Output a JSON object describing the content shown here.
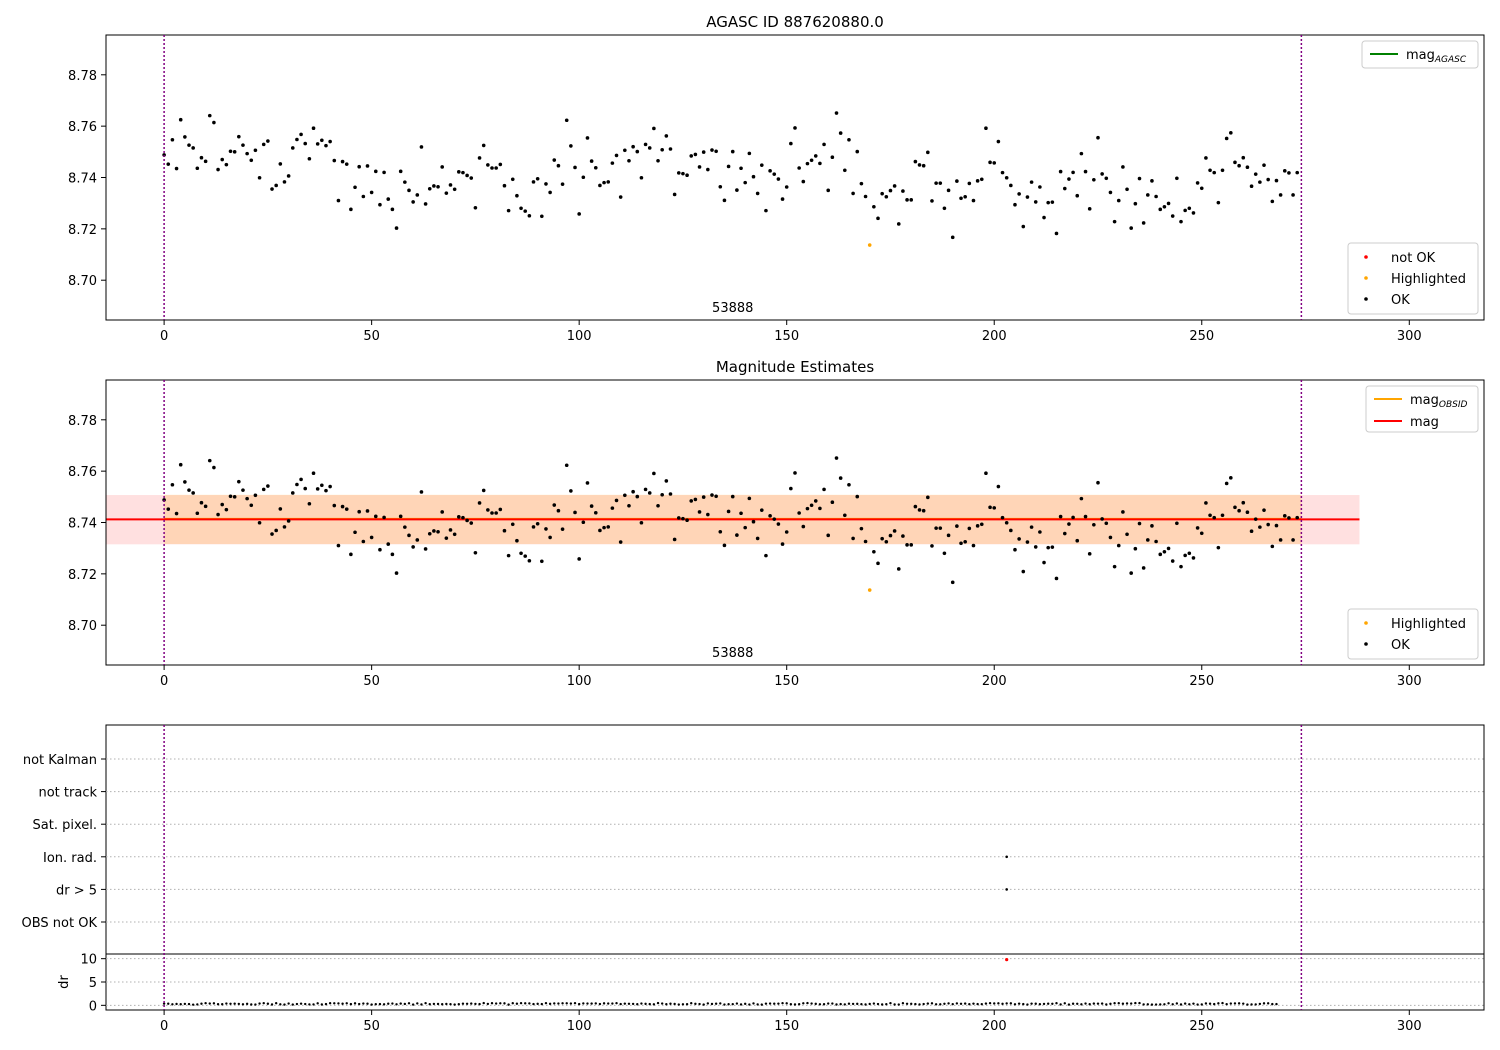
{
  "chart_data": [
    {
      "type": "scatter",
      "title": "AGASC ID 887620880.0",
      "xlim": [
        -14,
        318
      ],
      "ylim": [
        8.6845,
        8.7955
      ],
      "xticks": [
        0,
        50,
        100,
        150,
        200,
        250,
        300
      ],
      "yticks": [
        8.7,
        8.72,
        8.74,
        8.76,
        8.78
      ],
      "obsid_label": "53888",
      "obsid_label_x": 137,
      "vlines": [
        0,
        274
      ],
      "legend_lines": [
        {
          "label": "mag",
          "sub": "AGASC",
          "color": "#008000"
        }
      ],
      "legend_points": [
        {
          "label": "not OK",
          "color": "#ff0000"
        },
        {
          "label": "Highlighted",
          "color": "#ffa500"
        },
        {
          "label": "OK",
          "color": "#000000"
        }
      ],
      "highlighted": [
        {
          "x": 170,
          "y": 8.7137
        }
      ]
    },
    {
      "type": "scatter",
      "title": "Magnitude Estimates",
      "xlim": [
        -14,
        318
      ],
      "ylim": [
        8.6845,
        8.7955
      ],
      "xticks": [
        0,
        50,
        100,
        150,
        200,
        250,
        300
      ],
      "yticks": [
        8.7,
        8.72,
        8.74,
        8.76,
        8.78
      ],
      "obsid_label": "53888",
      "obsid_label_x": 137,
      "vlines": [
        0,
        274
      ],
      "mag": 8.7412,
      "mag_band": [
        8.7315,
        8.7507
      ],
      "mag_line_x": [
        -14,
        288
      ],
      "mag_obsid": 8.7414,
      "mag_obsid_band": [
        8.7316,
        8.7508
      ],
      "mag_obsid_line_x": [
        0,
        274
      ],
      "legend_lines": [
        {
          "label": "mag",
          "sub": "OBSID",
          "color": "#ffa500"
        },
        {
          "label": "mag",
          "sub": "",
          "color": "#ff0000"
        }
      ],
      "legend_points": [
        {
          "label": "Highlighted",
          "color": "#ffa500"
        },
        {
          "label": "OK",
          "color": "#000000"
        }
      ],
      "highlighted": [
        {
          "x": 170,
          "y": 8.7137
        }
      ]
    },
    {
      "type": "scatter",
      "title": "",
      "xlim": [
        -14,
        318
      ],
      "xticks": [
        0,
        50,
        100,
        150,
        200,
        250,
        300
      ],
      "vlines": [
        0,
        274
      ],
      "flag_labels": [
        "not Kalman",
        "not track",
        "Sat. pixel.",
        "Ion. rad.",
        "dr > 5",
        "OBS not OK"
      ],
      "flag_points": [
        {
          "flag": "Ion. rad.",
          "x": 203
        },
        {
          "flag": "dr > 5",
          "x": 203
        }
      ],
      "ylabel": "dr",
      "dr_ylim": [
        -1,
        11
      ],
      "dr_yticks": [
        0,
        5,
        10
      ],
      "dr_outlier": {
        "x": 203,
        "y": 9.8
      }
    }
  ],
  "magnitudes": [
    8.7488,
    8.7452,
    8.7547,
    8.7435,
    8.7625,
    8.7558,
    8.7526,
    8.7515,
    8.7436,
    8.7477,
    8.7463,
    8.7641,
    8.7614,
    8.7431,
    8.747,
    8.745,
    8.7502,
    8.75,
    8.7559,
    8.7526,
    8.7493,
    8.7467,
    8.7506,
    8.7399,
    8.7529,
    8.7542,
    8.7355,
    8.7369,
    8.7453,
    8.7383,
    8.7406,
    8.7515,
    8.7548,
    8.7568,
    8.7532,
    8.7473,
    8.7592,
    8.7531,
    8.7545,
    8.7524,
    8.754,
    8.7466,
    8.731,
    8.7462,
    8.7452,
    8.7276,
    8.7362,
    8.7442,
    8.7326,
    8.7445,
    8.7342,
    8.7424,
    8.7294,
    8.742,
    8.7316,
    8.7276,
    8.7203,
    8.7424,
    8.7382,
    8.735,
    8.7305,
    8.7332,
    8.7519,
    8.7297,
    8.7356,
    8.7367,
    8.7364,
    8.7441,
    8.7339,
    8.7371,
    8.7354,
    8.7422,
    8.7419,
    8.7408,
    8.7398,
    8.7282,
    8.7476,
    8.7525,
    8.7449,
    8.7437,
    8.7437,
    8.7451,
    8.7368,
    8.7271,
    8.7393,
    8.7329,
    8.728,
    8.7269,
    8.7251,
    8.7383,
    8.7395,
    8.7249,
    8.7375,
    8.7342,
    8.7468,
    8.7446,
    8.7374,
    8.7623,
    8.7523,
    8.7439,
    8.7258,
    8.7401,
    8.7554,
    8.7464,
    8.7438,
    8.7369,
    8.738,
    8.7383,
    8.7456,
    8.7486,
    8.7324,
    8.7506,
    8.7465,
    8.752,
    8.7501,
    8.7399,
    8.7529,
    8.7515,
    8.7591,
    8.7465,
    8.7508,
    8.7562,
    8.7511,
    8.7334,
    8.7418,
    8.7415,
    8.7409,
    8.7484,
    8.749,
    8.7441,
    8.7499,
    8.7431,
    8.7507,
    8.7502,
    8.7364,
    8.7311,
    8.7443,
    8.7501,
    8.7351,
    8.7436,
    8.738,
    8.7494,
    8.7403,
    8.7338,
    8.7448,
    8.7271,
    8.7426,
    8.7413,
    8.7394,
    8.7316,
    8.7363,
    8.7532,
    8.7593,
    8.7437,
    8.7384,
    8.7454,
    8.7467,
    8.7484,
    8.7455,
    8.7529,
    8.735,
    8.7479,
    8.7651,
    8.7573,
    8.7428,
    8.7547,
    8.7338,
    8.7501,
    8.7376,
    8.7326,
    8.7137,
    8.7286,
    8.7241,
    8.7337,
    8.7325,
    8.7349,
    8.7367,
    8.7219,
    8.7347,
    8.7313,
    8.7313,
    8.7462,
    8.7449,
    8.7446,
    8.7498,
    8.7309,
    8.7378,
    8.7378,
    8.728,
    8.735,
    8.7167,
    8.7386,
    8.7319,
    8.7325,
    8.7377,
    8.731,
    8.7387,
    8.7393,
    8.7592,
    8.7459,
    8.7457,
    8.754,
    8.7419,
    8.7399,
    8.7369,
    8.7294,
    8.7336,
    8.7209,
    8.7324,
    8.7382,
    8.7305,
    8.7363,
    8.7244,
    8.7302,
    8.7304,
    8.7182,
    8.7423,
    8.7357,
    8.7394,
    8.742,
    8.7329,
    8.7493,
    8.7423,
    8.7278,
    8.7391,
    8.7555,
    8.7414,
    8.7397,
    8.7342,
    8.7228,
    8.731,
    8.7441,
    8.7354,
    8.7203,
    8.7298,
    8.7396,
    8.7223,
    8.7332,
    8.7387,
    8.7326,
    8.7276,
    8.7286,
    8.7299,
    8.725,
    8.7397,
    8.7228,
    8.7272,
    8.728,
    8.7262,
    8.7379,
    8.7358,
    8.7476,
    8.7428,
    8.7419,
    8.7302,
    8.7428,
    8.7552,
    8.7574,
    8.7459,
    8.7446,
    8.7477,
    8.744,
    8.7366,
    8.7413,
    8.7382,
    8.7448,
    8.7392,
    8.7307,
    8.7388,
    8.7332,
    8.7426,
    8.7418,
    8.7332,
    8.7419
  ],
  "dr_values": [
    0.36,
    0.35,
    0.22,
    0.29,
    0.23,
    0.3,
    0.27,
    0.14,
    0.2,
    0.35,
    0.47,
    0.38,
    0.43,
    0.24,
    0.23,
    0.38,
    0.33,
    0.35,
    0.3,
    0.22,
    0.31,
    0.18,
    0.17,
    0.39,
    0.46,
    0.34,
    0.18,
    0.45,
    0.21,
    0.16,
    0.38,
    0.16,
    0.28,
    0.36,
    0.28,
    0.2,
    0.2,
    0.43,
    0.18,
    0.26,
    0.45,
    0.44,
    0.41,
    0.34,
    0.44,
    0.26,
    0.42,
    0.28,
    0.39,
    0.35,
    0.16,
    0.24,
    0.26,
    0.21,
    0.35,
    0.39,
    0.22,
    0.37,
    0.29,
    0.44,
    0.16,
    0.41,
    0.19,
    0.47,
    0.24,
    0.3,
    0.29,
    0.23,
    0.29,
    0.25,
    0.16,
    0.24,
    0.35,
    0.33,
    0.37,
    0.3,
    0.26,
    0.48,
    0.3,
    0.45,
    0.39,
    0.44,
    0.42,
    0.15,
    0.45,
    0.35,
    0.46,
    0.43,
    0.41,
    0.27,
    0.32,
    0.27,
    0.46,
    0.32,
    0.41,
    0.38,
    0.44,
    0.44,
    0.39,
    0.46,
    0.26,
    0.41,
    0.39,
    0.37,
    0.41,
    0.28,
    0.42,
    0.38,
    0.38,
    0.47,
    0.27,
    0.36,
    0.33,
    0.3,
    0.23,
    0.39,
    0.31,
    0.26,
    0.21,
    0.48,
    0.38,
    0.23,
    0.34,
    0.29,
    0.17,
    0.22,
    0.24,
    0.45,
    0.32,
    0.28,
    0.16,
    0.41,
    0.29,
    0.35,
    0.41,
    0.17,
    0.23,
    0.25,
    0.39,
    0.19,
    0.32,
    0.17,
    0.41,
    0.2,
    0.15,
    0.36,
    0.38,
    0.35,
    0.36,
    0.46,
    0.43,
    0.23,
    0.18,
    0.24,
    0.44,
    0.48,
    0.38,
    0.31,
    0.22,
    0.23,
    0.38,
    0.38,
    0.18,
    0.26,
    0.2,
    0.35,
    0.3,
    0.31,
    0.24,
    0.18,
    0.29,
    0.38,
    0.28,
    0.18,
    0.24,
    0.47,
    0.18,
    0.17,
    0.45,
    0.33,
    0.32,
    0.27,
    0.19,
    0.28,
    0.37,
    0.43,
    0.22,
    0.21,
    0.33,
    0.41,
    0.25,
    0.41,
    0.33,
    0.37,
    0.24,
    0.36,
    0.27,
    0.25,
    0.37,
    0.47,
    0.4,
    0.43,
    0.32,
    0.41,
    0.42,
    0.22,
    0.36,
    0.26,
    0.17,
    0.36,
    0.34,
    0.24,
    0.3,
    0.35,
    0.33,
    0.45,
    0.19,
    0.44,
    0.16,
    0.34,
    0.33,
    0.21,
    0.39,
    0.23,
    0.37,
    0.36,
    0.37,
    0.18,
    0.32,
    0.45,
    0.45,
    0.34,
    0.4,
    0.38,
    0.48,
    0.48,
    0.2,
    0.21,
    0.15,
    0.17,
    0.19,
    0.22,
    0.44,
    0.22,
    0.4,
    0.18,
    0.37,
    0.22,
    0.36,
    0.17,
    0.19,
    0.4,
    0.35,
    0.26,
    0.42,
    0.48,
    0.25,
    0.38,
    0.41,
    0.42,
    0.36,
    0.16,
    0.19,
    0.2,
    0.3,
    0.42,
    0.43,
    0.26,
    0.27
  ]
}
